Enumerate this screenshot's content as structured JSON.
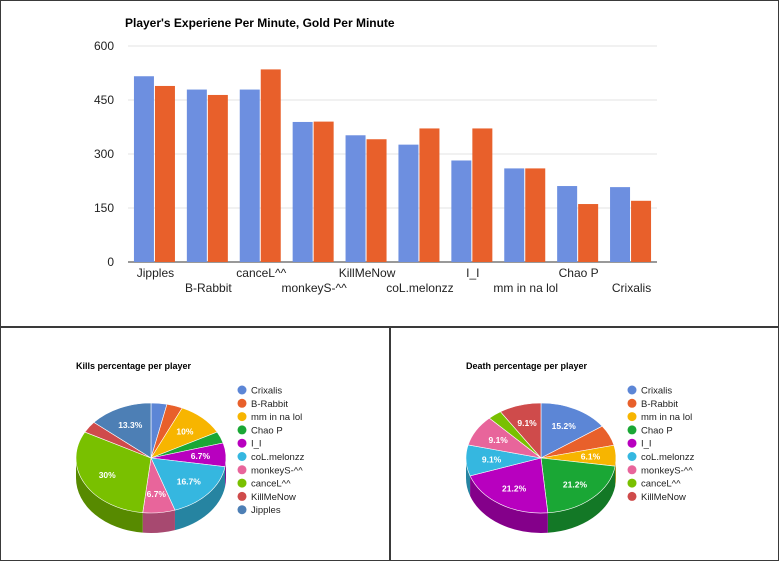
{
  "colors": {
    "series_blue": "#6d8fe0",
    "series_orange": "#e8602b",
    "gridline": "#e3e3e3",
    "border": "#3a3a3a"
  },
  "chart_data": [
    {
      "type": "bar",
      "title": "Player's Experiene Per Minute, Gold Per Minute",
      "categories": [
        "Jipples",
        "B-Rabbit",
        "canceL^^",
        "monkeyS-^^",
        "KillMeNow",
        "coL.melonzz",
        "I_I",
        "mm in na lol",
        "Chao P",
        "Crixalis"
      ],
      "series": [
        {
          "values": [
            516,
            479,
            479,
            389,
            352,
            326,
            282,
            260,
            211,
            208
          ],
          "color": "#6d8fe0"
        },
        {
          "values": [
            489,
            464,
            535,
            390,
            341,
            371,
            371,
            260,
            161,
            170
          ],
          "color": "#e8602b"
        }
      ],
      "ylim": [
        0,
        600
      ],
      "yticks": [
        "0",
        "150",
        "300",
        "450",
        "600"
      ],
      "grid": true
    },
    {
      "type": "pie",
      "title": "Kills percentage per player",
      "labels": [
        "Crixalis",
        "B-Rabbit",
        "mm in na lol",
        "Chao P",
        "I_I",
        "coL.melonzz",
        "monkeyS-^^",
        "canceL^^",
        "KillMeNow",
        "Jipples"
      ],
      "values": [
        3.3,
        3.3,
        10,
        3.3,
        6.7,
        16.7,
        6.7,
        30,
        3.3,
        13.3
      ],
      "slice_labels": [
        "",
        "",
        "10%",
        "",
        "6.7%",
        "16.7%",
        "6.7%",
        "30%",
        "",
        "13.3%"
      ],
      "colors": [
        "#5c86d6",
        "#e8602b",
        "#f7b500",
        "#1aa735",
        "#b800bf",
        "#35b7e0",
        "#e8659b",
        "#79c000",
        "#cf4b4b",
        "#4d7fb5"
      ],
      "legend": "right",
      "style": "3d"
    },
    {
      "type": "pie",
      "title": "Death percentage per player",
      "labels": [
        "Crixalis",
        "B-Rabbit",
        "mm in na lol",
        "Chao P",
        "I_I",
        "coL.melonzz",
        "monkeyS-^^",
        "canceL^^",
        "KillMeNow"
      ],
      "values": [
        15.2,
        6.1,
        6.1,
        21.2,
        21.2,
        9.1,
        9.1,
        3,
        9.1
      ],
      "slice_labels": [
        "15.2%",
        "",
        "6.1%",
        "21.2%",
        "21.2%",
        "9.1%",
        "9.1%",
        "",
        "9.1%"
      ],
      "colors": [
        "#5c86d6",
        "#e8602b",
        "#f7b500",
        "#1aa735",
        "#b800bf",
        "#35b7e0",
        "#e8659b",
        "#79c000",
        "#cf4b4b"
      ],
      "legend": "right",
      "style": "3d"
    }
  ]
}
